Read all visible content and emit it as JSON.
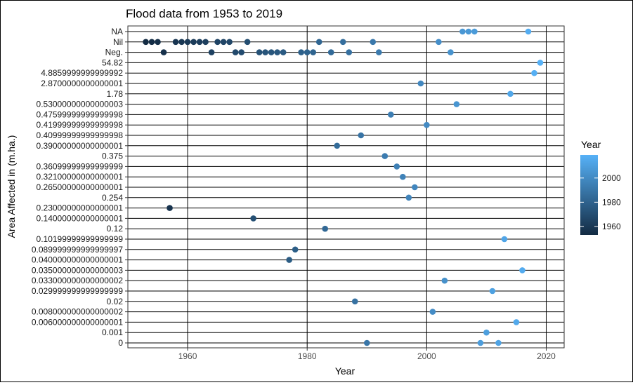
{
  "chart_data": {
    "type": "scatter",
    "title": "Flood data from 1953 to 2019",
    "xlabel": "Year",
    "ylabel": "Area Affected in (m.ha.)",
    "xlim": [
      1950,
      2023
    ],
    "x_ticks": [
      "1960",
      "1980",
      "2000",
      "2020"
    ],
    "y_categories": [
      "0",
      "0.001",
      "0.006000000000000001",
      "0.008000000000000002",
      "0.02",
      "0.029999999999999999",
      "0.033000000000000002",
      "0.035000000000000003",
      "0.040000000000000001",
      "0.089999999999999997",
      "0.10199999999999999",
      "0.12",
      "0.14000000000000001",
      "0.23000000000000001",
      "0.254",
      "0.26500000000000001",
      "0.32100000000000001",
      "0.36099999999999999",
      "0.375",
      "0.39000000000000001",
      "0.40999999999999998",
      "0.41999999999999998",
      "0.47599999999999998",
      "0.53000000000000003",
      "1.78",
      "2.8700000000000001",
      "4.8859999999999992",
      "54.82",
      "Neg.",
      "Nil",
      "NA"
    ],
    "legend": {
      "title": "Year",
      "ticks": [
        "1960",
        "1980",
        "2000"
      ],
      "range": [
        1953,
        2019
      ],
      "low_color": "#132B43",
      "high_color": "#56B1F7",
      "position": "right"
    },
    "grid": true,
    "points": [
      {
        "x": 1953,
        "y": "Nil"
      },
      {
        "x": 1954,
        "y": "Nil"
      },
      {
        "x": 1955,
        "y": "Nil"
      },
      {
        "x": 1956,
        "y": "Neg."
      },
      {
        "x": 1957,
        "y": "0.23000000000000001"
      },
      {
        "x": 1958,
        "y": "Nil"
      },
      {
        "x": 1959,
        "y": "Nil"
      },
      {
        "x": 1960,
        "y": "Nil"
      },
      {
        "x": 1961,
        "y": "Nil"
      },
      {
        "x": 1962,
        "y": "Nil"
      },
      {
        "x": 1963,
        "y": "Nil"
      },
      {
        "x": 1964,
        "y": "Neg."
      },
      {
        "x": 1965,
        "y": "Nil"
      },
      {
        "x": 1966,
        "y": "Nil"
      },
      {
        "x": 1967,
        "y": "Nil"
      },
      {
        "x": 1968,
        "y": "Neg."
      },
      {
        "x": 1969,
        "y": "Neg."
      },
      {
        "x": 1970,
        "y": "Nil"
      },
      {
        "x": 1971,
        "y": "0.14000000000000001"
      },
      {
        "x": 1972,
        "y": "Neg."
      },
      {
        "x": 1973,
        "y": "Neg."
      },
      {
        "x": 1974,
        "y": "Neg."
      },
      {
        "x": 1975,
        "y": "Neg."
      },
      {
        "x": 1976,
        "y": "Neg."
      },
      {
        "x": 1977,
        "y": "0.040000000000000001"
      },
      {
        "x": 1978,
        "y": "0.089999999999999997"
      },
      {
        "x": 1979,
        "y": "Neg."
      },
      {
        "x": 1980,
        "y": "Neg."
      },
      {
        "x": 1981,
        "y": "Neg."
      },
      {
        "x": 1982,
        "y": "Nil"
      },
      {
        "x": 1983,
        "y": "0.12"
      },
      {
        "x": 1984,
        "y": "Neg."
      },
      {
        "x": 1985,
        "y": "0.39000000000000001"
      },
      {
        "x": 1986,
        "y": "Nil"
      },
      {
        "x": 1987,
        "y": "Neg."
      },
      {
        "x": 1988,
        "y": "0.02"
      },
      {
        "x": 1989,
        "y": "0.40999999999999998"
      },
      {
        "x": 1990,
        "y": "0"
      },
      {
        "x": 1991,
        "y": "Nil"
      },
      {
        "x": 1992,
        "y": "Neg."
      },
      {
        "x": 1993,
        "y": "0.375"
      },
      {
        "x": 1994,
        "y": "0.47599999999999998"
      },
      {
        "x": 1995,
        "y": "0.36099999999999999"
      },
      {
        "x": 1996,
        "y": "0.32100000000000001"
      },
      {
        "x": 1997,
        "y": "0.254"
      },
      {
        "x": 1998,
        "y": "0.26500000000000001"
      },
      {
        "x": 1999,
        "y": "2.8700000000000001"
      },
      {
        "x": 2000,
        "y": "0.41999999999999998"
      },
      {
        "x": 2001,
        "y": "0.008000000000000002"
      },
      {
        "x": 2002,
        "y": "Nil"
      },
      {
        "x": 2003,
        "y": "0.033000000000000002"
      },
      {
        "x": 2004,
        "y": "Neg."
      },
      {
        "x": 2005,
        "y": "0.53000000000000003"
      },
      {
        "x": 2006,
        "y": "NA"
      },
      {
        "x": 2007,
        "y": "NA"
      },
      {
        "x": 2008,
        "y": "NA"
      },
      {
        "x": 2009,
        "y": "0"
      },
      {
        "x": 2010,
        "y": "0.001"
      },
      {
        "x": 2011,
        "y": "0.029999999999999999"
      },
      {
        "x": 2012,
        "y": "0"
      },
      {
        "x": 2013,
        "y": "0.10199999999999999"
      },
      {
        "x": 2014,
        "y": "1.78"
      },
      {
        "x": 2015,
        "y": "0.006000000000000001"
      },
      {
        "x": 2016,
        "y": "0.035000000000000003"
      },
      {
        "x": 2017,
        "y": "NA"
      },
      {
        "x": 2018,
        "y": "4.8859999999999992"
      },
      {
        "x": 2019,
        "y": "54.82"
      }
    ]
  }
}
